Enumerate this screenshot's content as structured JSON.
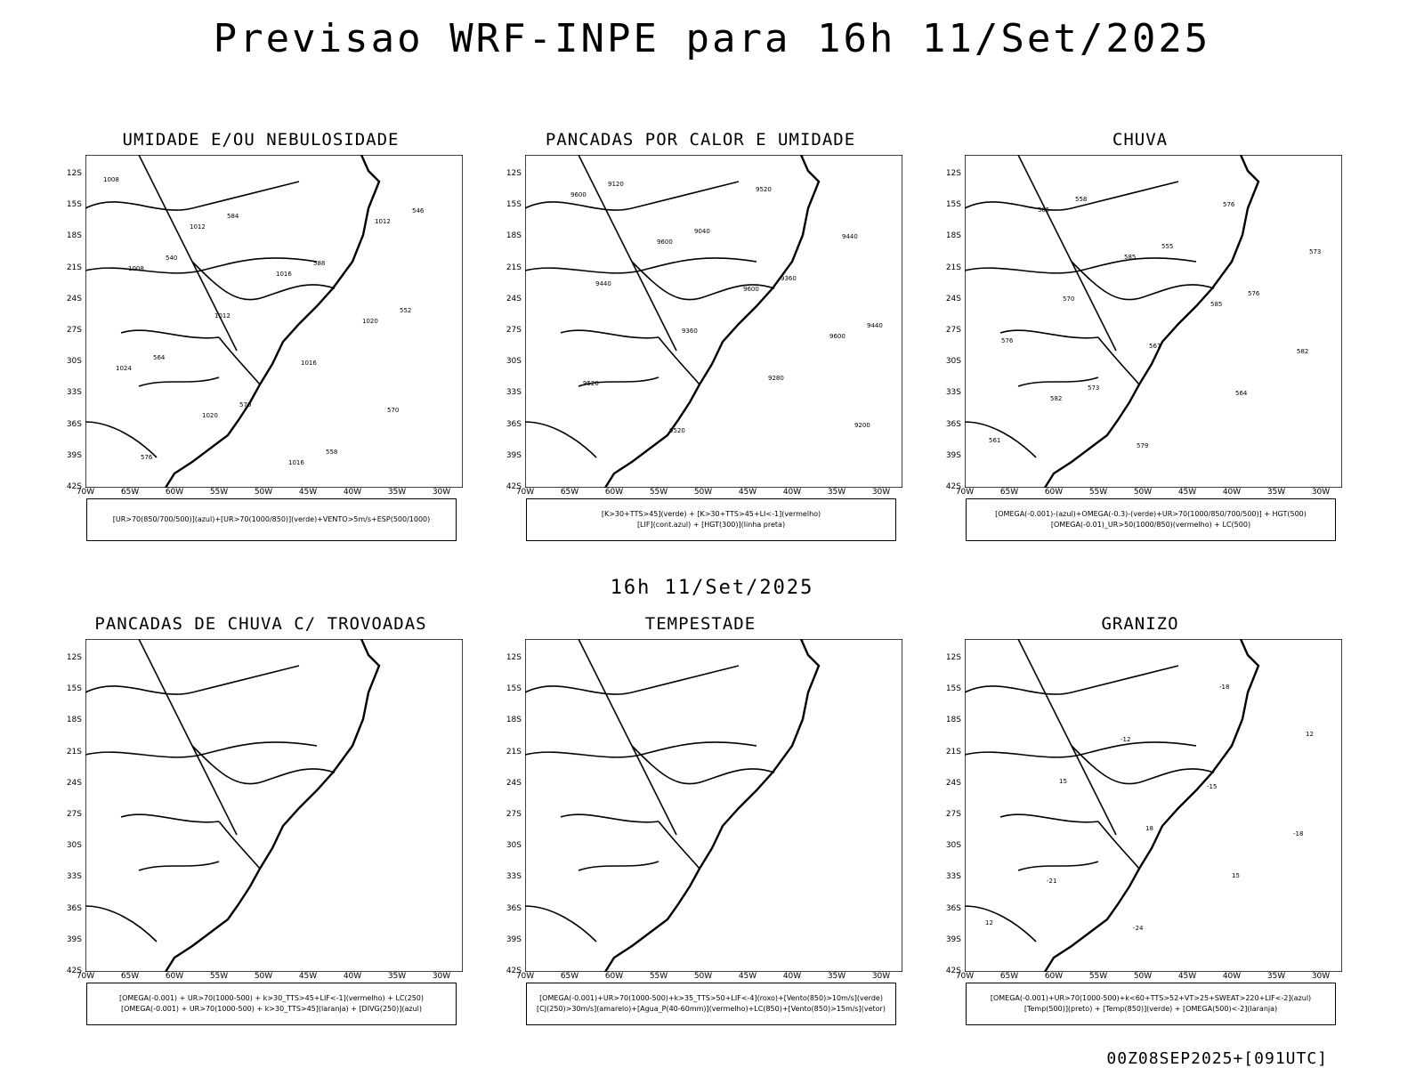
{
  "header": {
    "title": "Previsao WRF-INPE  para 16h 11/Set/2025",
    "subtitle": "16h 11/Set/2025",
    "run_id": "00Z08SEP2025+[091UTC]"
  },
  "axes": {
    "lat_labels": [
      "12S",
      "15S",
      "18S",
      "21S",
      "24S",
      "27S",
      "30S",
      "33S",
      "36S",
      "39S",
      "42S"
    ],
    "lon_labels": [
      "70W",
      "65W",
      "60W",
      "55W",
      "50W",
      "45W",
      "40W",
      "35W",
      "30W"
    ]
  },
  "colors": {
    "red": "#ee3333",
    "green": "#22cc22",
    "blue": "#3355ee",
    "lavender": "#8c8ce8",
    "darkteal": "#20504f",
    "yellow": "#e3dc2c",
    "orange": "#ff8800"
  },
  "panels": [
    {
      "title": "UMIDADE E/OU NEBULOSIDADE",
      "legend": [
        "[UR>70(850/700/500)](azul)+[UR>70(1000/850)](verde)+VENTO>5m/s+ESP(500/1000)"
      ],
      "labels": [
        "1008",
        "1012",
        "1016",
        "1020",
        "1024",
        "1020",
        "1016",
        "1012",
        "1008",
        "1012",
        "1016",
        "570",
        "576",
        "584",
        "588",
        "552",
        "564",
        "570",
        "558",
        "546",
        "540"
      ]
    },
    {
      "title": "PANCADAS POR CALOR E UMIDADE",
      "legend": [
        "[K>30+TTS>45](verde) + [K>30+TTS>45+LI<-1](vermelho)",
        "[LIF](cont.azul) + [HGT(300)](linha preta)"
      ],
      "labels": [
        "9600",
        "9600",
        "9600",
        "9600",
        "9520",
        "9520",
        "9520",
        "9440",
        "9440",
        "9360",
        "9280",
        "9200",
        "9120",
        "9040",
        "9360",
        "9440"
      ]
    },
    {
      "title": "CHUVA",
      "legend": [
        "[OMEGA(-0.001)-(azul)+OMEGA(-0.3)-(verde)+UR>70(1000/850/700/500)] + HGT(500)",
        "[OMEGA(-0.01)_UR>50(1000/850)(vermelho) + LC(500)"
      ],
      "labels": [
        "585",
        "585",
        "585",
        "582",
        "582",
        "579",
        "576",
        "573",
        "570",
        "567",
        "564",
        "561",
        "558",
        "555",
        "576",
        "576",
        "573"
      ]
    },
    {
      "title": "PANCADAS DE CHUVA C/ TROVOADAS",
      "legend": [
        "[OMEGA(-0.001) + UR>70(1000-500) + k>30_TTS>45+LIF<-1](vermelho) + LC(250)",
        "[OMEGA(-0.001) + UR>70(1000-500) + k>30_TTS>45](laranja) + [DIVG(250)](azul)"
      ],
      "labels": []
    },
    {
      "title": "TEMPESTADE",
      "legend": [
        "[OMEGA(-0.001)+UR>70(1000-500)+k>35_TTS>50+LIF<-4](roxo)+[Vento(850)>10m/s](verde)",
        "[CJ(250)>30m/s](amarelo)+[Agua_P(40-60mm)](vermelho)+LC(850)+[Vento(850)>15m/s](vetor)"
      ],
      "labels": []
    },
    {
      "title": "GRANIZO",
      "legend": [
        "[OMEGA(-0.001)+UR>70(1000-500)+k<60+TTS>52+VT>25+SWEAT>220+LIF<-2](azul)",
        "[Temp(500)](preto) + [Temp(850)](verde) + [OMEGA(500)<-2](laranja)"
      ],
      "labels": [
        "-12",
        "-15",
        "-18",
        "-21",
        "-24",
        "-18",
        "12",
        "15",
        "18",
        "15",
        "12"
      ]
    }
  ]
}
